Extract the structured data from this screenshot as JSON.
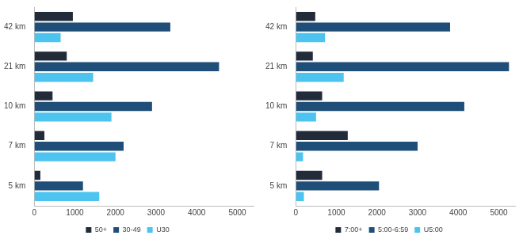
{
  "chart_data": [
    {
      "type": "bar",
      "orientation": "horizontal",
      "categories": [
        "42 km",
        "21 km",
        "10 km",
        "7 km",
        "5 km"
      ],
      "series": [
        {
          "name": "50+",
          "color": "#222b3a",
          "values": [
            950,
            800,
            450,
            250,
            150
          ]
        },
        {
          "name": "30-49",
          "color": "#1f4e78",
          "values": [
            3350,
            4550,
            2900,
            2200,
            1200
          ]
        },
        {
          "name": "U30",
          "color": "#4dc3ef",
          "values": [
            650,
            1450,
            1900,
            2000,
            1600
          ]
        }
      ],
      "xlim": [
        0,
        5400
      ],
      "xticks": [
        0,
        1000,
        2000,
        3000,
        4000,
        5000
      ],
      "grid": false,
      "legend": "bottom"
    },
    {
      "type": "bar",
      "orientation": "horizontal",
      "categories": [
        "42 km",
        "21 km",
        "10 km",
        "7 km",
        "5 km"
      ],
      "series": [
        {
          "name": "7:00+",
          "color": "#222b3a",
          "values": [
            480,
            420,
            650,
            1280,
            650
          ]
        },
        {
          "name": "5:00-6:59",
          "color": "#1f4e78",
          "values": [
            3800,
            5250,
            4150,
            3000,
            2050
          ]
        },
        {
          "name": "U5:00",
          "color": "#4dc3ef",
          "values": [
            720,
            1180,
            500,
            180,
            200
          ]
        }
      ],
      "xlim": [
        0,
        5400
      ],
      "xticks": [
        0,
        1000,
        2000,
        3000,
        4000,
        5000
      ],
      "grid": false,
      "legend": "bottom"
    }
  ]
}
